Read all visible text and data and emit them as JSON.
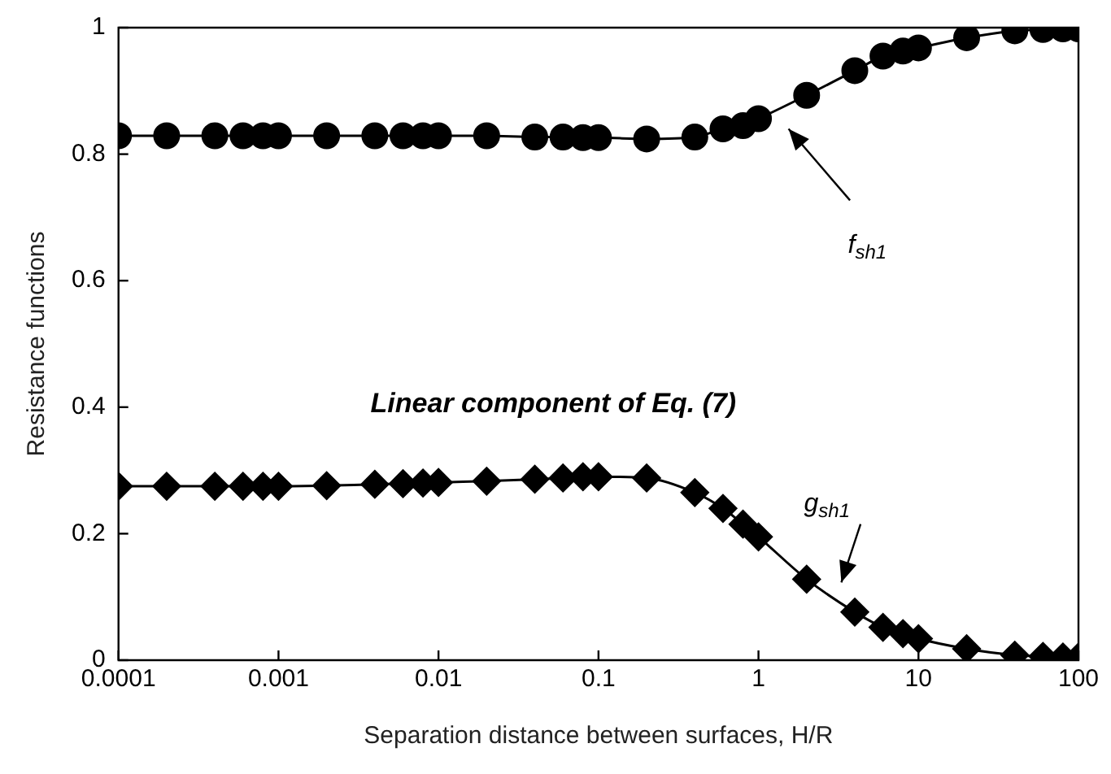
{
  "chart_data": {
    "type": "line",
    "xlabel": "Separation distance between surfaces, H/R",
    "ylabel": "Resistance functions",
    "log": "x",
    "xlim": [
      0.0001,
      100
    ],
    "xticks": [
      0.0001,
      0.001,
      0.01,
      0.1,
      1,
      10,
      100
    ],
    "ylim": [
      0,
      1
    ],
    "yticks": [
      0,
      0.2,
      0.4,
      0.6,
      0.8,
      1
    ],
    "grid": false,
    "legend": false,
    "x": [
      0.0001,
      0.0002,
      0.0004,
      0.0006,
      0.0008,
      0.001,
      0.002,
      0.004,
      0.006,
      0.008,
      0.01,
      0.02,
      0.04,
      0.06,
      0.08,
      0.1,
      0.2,
      0.4,
      0.6,
      0.8,
      1,
      2,
      4,
      6,
      8,
      10,
      20,
      40,
      60,
      80,
      100
    ],
    "series": [
      {
        "color": "#000000",
        "marker": "circle",
        "values": [
          0.829,
          0.829,
          0.829,
          0.829,
          0.829,
          0.829,
          0.829,
          0.829,
          0.829,
          0.829,
          0.829,
          0.829,
          0.827,
          0.827,
          0.826,
          0.826,
          0.824,
          0.827,
          0.84,
          0.845,
          0.856,
          0.893,
          0.932,
          0.955,
          0.963,
          0.968,
          0.984,
          0.995,
          0.997,
          0.998,
          0.998
        ]
      },
      {
        "color": "#000000",
        "marker": "diamond",
        "values": [
          0.275,
          0.275,
          0.275,
          0.275,
          0.275,
          0.275,
          0.276,
          0.278,
          0.279,
          0.28,
          0.281,
          0.283,
          0.286,
          0.288,
          0.29,
          0.29,
          0.288,
          0.265,
          0.24,
          0.215,
          0.195,
          0.128,
          0.076,
          0.052,
          0.042,
          0.034,
          0.018,
          0.008,
          0.006,
          0.005,
          0.005
        ]
      }
    ],
    "annotations": [
      "f$_{sh1}$",
      "g$_{sh1}$",
      "Linear component of Eq. (7)"
    ]
  }
}
